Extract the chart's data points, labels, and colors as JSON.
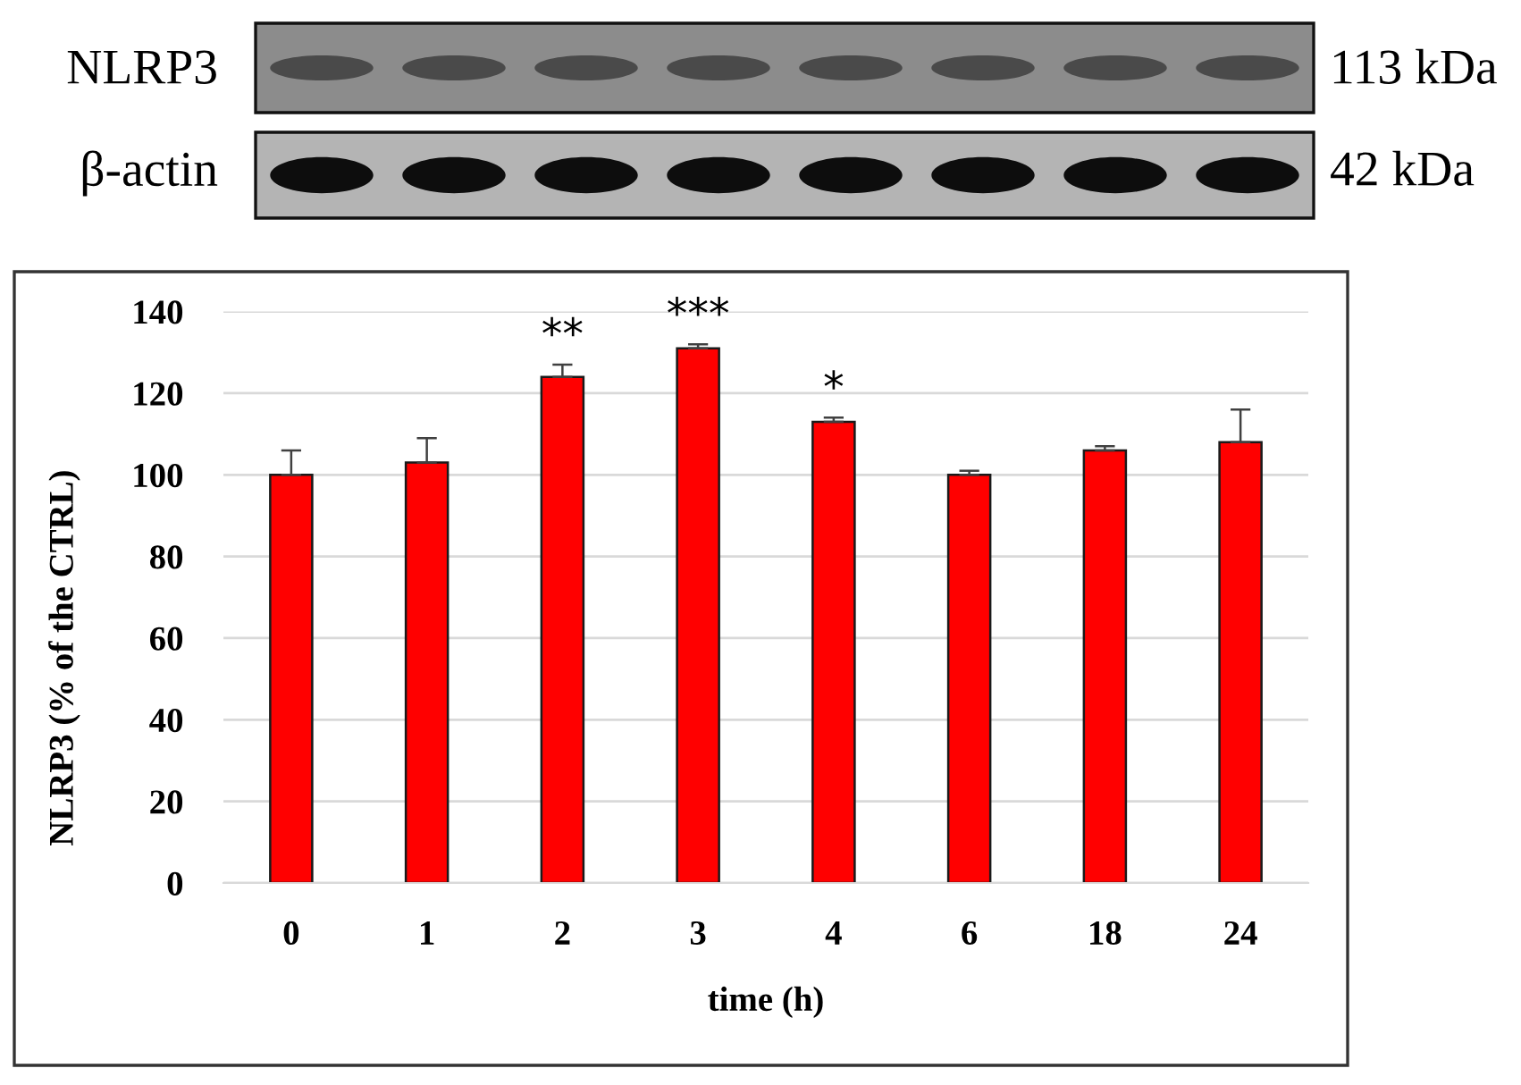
{
  "chart_data": {
    "type": "bar",
    "categories": [
      "0",
      "1",
      "2",
      "3",
      "4",
      "6",
      "18",
      "24"
    ],
    "values": [
      100,
      103,
      124,
      131,
      113,
      100,
      106,
      108
    ],
    "errors": [
      [
        100,
        106
      ],
      [
        103,
        109
      ],
      [
        124,
        127
      ],
      [
        131,
        132
      ],
      [
        113,
        114
      ],
      [
        100,
        101
      ],
      [
        106,
        107
      ],
      [
        108,
        116
      ]
    ],
    "color": "#ff0000",
    "xlabel": "time (h)",
    "ylabel": "NLRP3 (% of the CTRL)",
    "ylim": [
      0,
      140
    ],
    "yticks": [
      0,
      20,
      40,
      60,
      80,
      100,
      120,
      140
    ],
    "grid": "y",
    "annotations": [
      "NLRP3",
      "113 kDa",
      "β-actin",
      "42 kDa",
      {
        "text": "**",
        "x": "2",
        "y": 127
      },
      {
        "text": "***",
        "x": "3",
        "y": 132
      },
      {
        "text": "*",
        "x": "4",
        "y": 114
      }
    ]
  }
}
